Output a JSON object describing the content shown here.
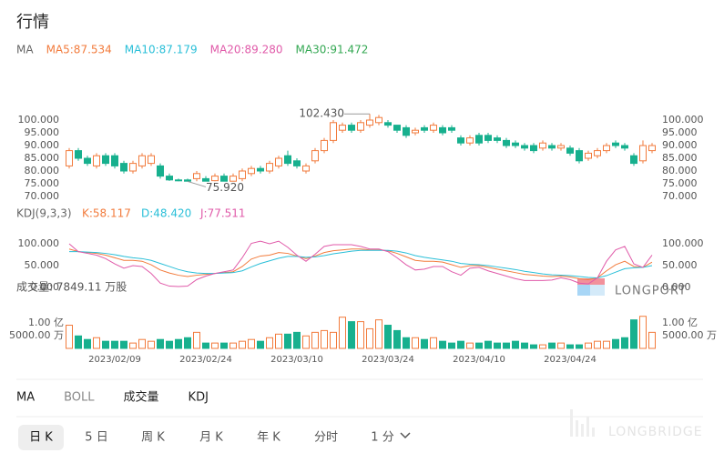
{
  "header": {
    "title": "行情"
  },
  "chart_data": [
    {
      "type": "candlestick",
      "legend": [
        {
          "label": "MA",
          "color": "#666666"
        },
        {
          "label": "MA5:87.534",
          "color": "#f27b3c"
        },
        {
          "label": "MA10:87.179",
          "color": "#29bfd8"
        },
        {
          "label": "MA20:89.280",
          "color": "#e05aa9"
        },
        {
          "label": "MA30:91.472",
          "color": "#34a853"
        }
      ],
      "up_color": "#f27b3c",
      "down_color": "#17b08e",
      "open": [
        82,
        88,
        85,
        82,
        86,
        86,
        83,
        80,
        82,
        83,
        82,
        78,
        76.5,
        76.5,
        77,
        77,
        76.2,
        78,
        76,
        77,
        79,
        81,
        80,
        82,
        86,
        84,
        80,
        84,
        88,
        92,
        96,
        98,
        96,
        98,
        99,
        99,
        98,
        97,
        95,
        97,
        96,
        97,
        97,
        93,
        91,
        94,
        94,
        93,
        92,
        91,
        90,
        90,
        89,
        90,
        89,
        89,
        88,
        85,
        86,
        88,
        91,
        90,
        86,
        84,
        88
      ],
      "high": [
        89,
        89,
        86,
        87,
        87,
        87,
        84,
        84,
        87,
        87,
        83,
        79,
        77,
        77,
        80,
        78,
        79,
        79,
        79,
        81,
        82,
        82,
        84,
        86,
        88,
        85,
        83,
        89,
        93,
        100,
        99,
        99,
        100,
        102.43,
        102,
        100,
        98,
        98,
        97,
        98,
        99,
        98,
        98,
        94,
        94,
        95,
        95,
        94,
        93,
        92,
        91,
        91,
        92,
        91,
        91,
        90,
        89,
        88,
        89,
        91,
        92,
        91,
        87,
        92,
        91
      ],
      "low": [
        81,
        84,
        82,
        81,
        82,
        81,
        79,
        79,
        81,
        82,
        77,
        76.1,
        76,
        75.92,
        76,
        76,
        76,
        76,
        76,
        76,
        78,
        79,
        79,
        81,
        82,
        81,
        79,
        83,
        87,
        91,
        95,
        95,
        95,
        97,
        98,
        97,
        95,
        93,
        94,
        95,
        95,
        94,
        95,
        90,
        90,
        90,
        91,
        91,
        89,
        89,
        88,
        87,
        88,
        88,
        88,
        86,
        83,
        84,
        85,
        87,
        89,
        88,
        82,
        83,
        87
      ],
      "close": [
        88,
        85,
        83,
        86,
        83,
        82,
        80,
        83,
        86,
        86,
        78,
        76.5,
        76.3,
        76,
        79,
        76,
        78,
        76,
        78,
        80,
        81,
        80,
        83,
        85,
        83,
        82,
        82,
        88,
        92,
        99,
        98,
        96,
        99,
        100,
        101,
        98,
        96,
        94,
        96,
        96,
        98,
        95,
        96,
        91,
        93,
        91,
        92,
        92,
        90,
        90,
        89,
        88,
        91,
        89,
        90,
        87,
        84,
        87,
        88,
        90,
        90,
        89,
        83,
        90,
        90
      ],
      "high_label": "102.430",
      "low_label": "75.920",
      "ylim": [
        68,
        104
      ],
      "yticks": [
        {
          "value": 100,
          "label": "100.000"
        },
        {
          "value": 95,
          "label": "95.000"
        },
        {
          "value": 90,
          "label": "90.000"
        },
        {
          "value": 85,
          "label": "85.000"
        },
        {
          "value": 80,
          "label": "80.000"
        },
        {
          "value": 75,
          "label": "75.000"
        },
        {
          "value": 70,
          "label": "70.000"
        }
      ]
    },
    {
      "type": "line",
      "label": "KDJ(9,3,3)",
      "series": [
        {
          "name": "K:58.117",
          "color": "#f27b3c",
          "values": [
            88,
            82,
            80,
            78,
            74,
            68,
            62,
            62,
            60,
            52,
            40,
            33,
            28,
            25,
            28,
            30,
            32,
            34,
            36,
            48,
            65,
            72,
            74,
            80,
            78,
            72,
            66,
            72,
            80,
            84,
            86,
            88,
            88,
            86,
            86,
            84,
            78,
            70,
            62,
            60,
            60,
            58,
            52,
            46,
            50,
            50,
            46,
            42,
            38,
            34,
            30,
            28,
            26,
            25,
            26,
            24,
            20,
            18,
            22,
            38,
            52,
            60,
            48,
            46,
            58
          ]
        },
        {
          "name": "D:48.420",
          "color": "#29bfd8",
          "values": [
            82,
            82,
            81,
            80,
            78,
            75,
            71,
            68,
            66,
            62,
            55,
            48,
            41,
            36,
            33,
            32,
            32,
            33,
            34,
            38,
            47,
            55,
            61,
            67,
            71,
            71,
            69,
            70,
            73,
            77,
            80,
            83,
            85,
            85,
            85,
            85,
            83,
            79,
            73,
            69,
            66,
            63,
            60,
            55,
            53,
            52,
            50,
            47,
            44,
            41,
            37,
            34,
            31,
            29,
            28,
            27,
            25,
            23,
            22,
            27,
            35,
            43,
            45,
            46,
            50
          ]
        },
        {
          "name": "J:77.511",
          "color": "#e05aa9",
          "values": [
            100,
            82,
            78,
            74,
            66,
            54,
            44,
            50,
            48,
            32,
            10,
            3,
            2,
            3,
            18,
            26,
            32,
            36,
            40,
            68,
            101,
            106,
            100,
            106,
            92,
            74,
            60,
            76,
            94,
            98,
            98,
            98,
            94,
            88,
            88,
            82,
            68,
            52,
            40,
            42,
            48,
            48,
            36,
            28,
            44,
            46,
            38,
            32,
            26,
            20,
            16,
            16,
            16,
            17,
            22,
            18,
            10,
            8,
            22,
            60,
            86,
            94,
            54,
            46,
            74
          ]
        }
      ],
      "ylim": [
        -20,
        110
      ],
      "yticks": [
        {
          "value": 100,
          "label": "100.000"
        },
        {
          "value": 50,
          "label": "50.000"
        },
        {
          "value": 0,
          "label": "0.000"
        }
      ]
    },
    {
      "type": "volume",
      "title": "成交量: 7849.11 万股",
      "categories": [
        null,
        null,
        null,
        null,
        null,
        "2023/02/09",
        null,
        null,
        null,
        null,
        null,
        null,
        null,
        null,
        null,
        "2023/02/24",
        null,
        null,
        null,
        null,
        null,
        null,
        null,
        null,
        null,
        "2023/03/10",
        null,
        null,
        null,
        null,
        null,
        null,
        null,
        null,
        null,
        "2023/03/24",
        null,
        null,
        null,
        null,
        null,
        null,
        null,
        null,
        null,
        "2023/04/10",
        null,
        null,
        null,
        null,
        null,
        null,
        null,
        null,
        null,
        "2023/04/24",
        null,
        null,
        null,
        null,
        null,
        null,
        null,
        null,
        null
      ],
      "values": [
        91000000,
        49000000,
        35000000,
        42000000,
        28000000,
        28000000,
        28000000,
        21000000,
        35000000,
        28000000,
        35000000,
        28000000,
        35000000,
        42000000,
        63000000,
        21000000,
        21000000,
        21000000,
        21000000,
        28000000,
        35000000,
        28000000,
        42000000,
        56000000,
        56000000,
        63000000,
        49000000,
        63000000,
        70000000,
        63000000,
        122500000,
        105000000,
        105000000,
        77000000,
        112000000,
        91000000,
        70000000,
        42000000,
        42000000,
        35000000,
        42000000,
        28000000,
        21000000,
        28000000,
        21000000,
        21000000,
        28000000,
        21000000,
        21000000,
        28000000,
        21000000,
        14000000,
        14000000,
        21000000,
        21000000,
        14000000,
        14000000,
        21000000,
        28000000,
        28000000,
        35000000,
        42000000,
        112000000,
        126000000,
        63000000
      ],
      "ylim": [
        0,
        130000000
      ],
      "yticks": [
        {
          "value": 100000000,
          "label": "1.00 亿"
        },
        {
          "value": 50000000,
          "label": "5000.00 万"
        }
      ]
    }
  ],
  "tabs": [
    "MA",
    "BOLL",
    "成交量",
    "KDJ"
  ],
  "periods": [
    "日 K",
    "5 日",
    "周 K",
    "月 K",
    "年 K",
    "分时",
    "1 分"
  ],
  "watermarks": [
    "LONGPORT",
    "LONGBRIDGE"
  ]
}
